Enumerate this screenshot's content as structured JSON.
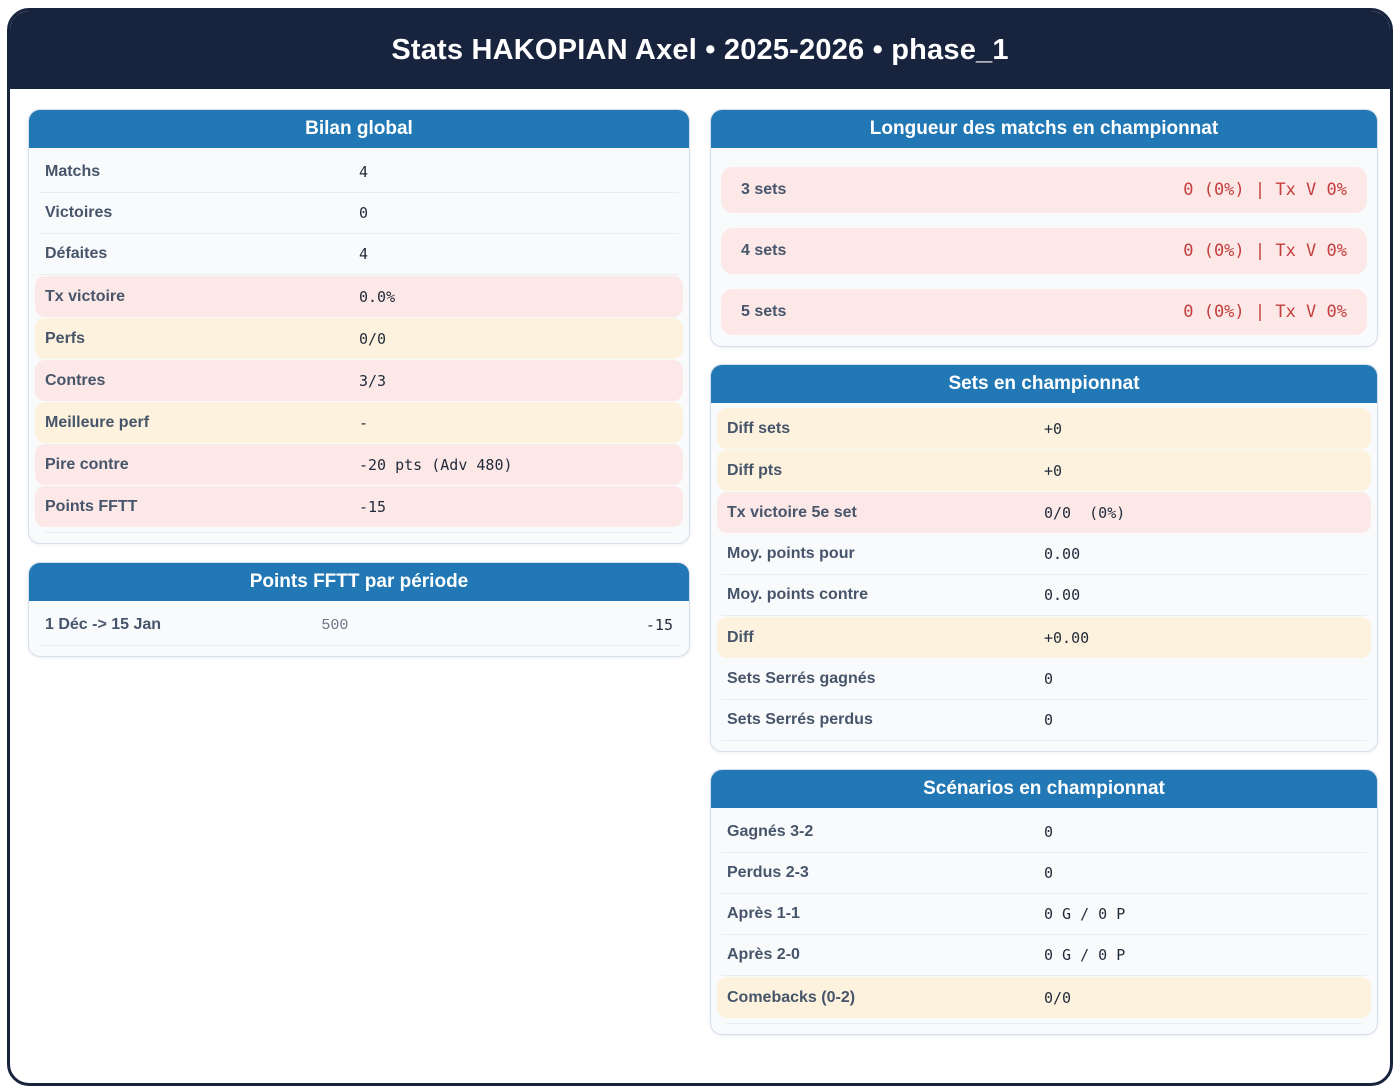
{
  "header": {
    "title": "Stats HAKOPIAN Axel • 2025-2026 • phase_1"
  },
  "colors": {
    "frame_navy": "#18233e",
    "card_header_blue": "#2278b5",
    "highlight_pink": "#fde8e8",
    "highlight_cream": "#fdf2dd",
    "value_red": "#c43e3e"
  },
  "cards": {
    "bilan_global": {
      "title": "Bilan global",
      "rows": [
        {
          "label": "Matchs",
          "value": "4",
          "highlight": "none"
        },
        {
          "label": "Victoires",
          "value": "0",
          "highlight": "none"
        },
        {
          "label": "Défaites",
          "value": "4",
          "highlight": "none"
        },
        {
          "label": "Tx victoire",
          "value": "0.0%",
          "highlight": "pink"
        },
        {
          "label": "Perfs",
          "value": "0/0",
          "highlight": "cream"
        },
        {
          "label": "Contres",
          "value": "3/3",
          "highlight": "pink"
        },
        {
          "label": "Meilleure perf",
          "value": "-",
          "highlight": "cream"
        },
        {
          "label": "Pire contre",
          "value": "-20 pts (Adv 480)",
          "highlight": "pink"
        },
        {
          "label": "Points FFTT",
          "value": "-15",
          "highlight": "pink"
        }
      ]
    },
    "points_periode": {
      "title": "Points FFTT par période",
      "rows": [
        {
          "label": "1 Déc -> 15 Jan",
          "mid_value": "500",
          "value": "-15",
          "highlight": "none"
        }
      ]
    },
    "longueur_matchs": {
      "title": "Longueur des matchs en championnat",
      "rows": [
        {
          "label": "3 sets",
          "value": "0 (0%) | Tx V 0%",
          "highlight": "pink"
        },
        {
          "label": "4 sets",
          "value": "0 (0%) | Tx V 0%",
          "highlight": "pink"
        },
        {
          "label": "5 sets",
          "value": "0 (0%) | Tx V 0%",
          "highlight": "pink"
        }
      ]
    },
    "sets_championnat": {
      "title": "Sets en championnat",
      "rows": [
        {
          "label": "Diff sets",
          "value": "+0",
          "highlight": "cream"
        },
        {
          "label": "Diff pts",
          "value": "+0",
          "highlight": "cream"
        },
        {
          "label": "Tx victoire 5e set",
          "value": "0/0  (0%)",
          "highlight": "pink"
        },
        {
          "label": "Moy. points pour",
          "value": "0.00",
          "highlight": "none"
        },
        {
          "label": "Moy. points contre",
          "value": "0.00",
          "highlight": "none"
        },
        {
          "label": "Diff",
          "value": "+0.00",
          "highlight": "cream"
        },
        {
          "label": "Sets Serrés gagnés",
          "value": "0",
          "highlight": "none"
        },
        {
          "label": "Sets Serrés perdus",
          "value": "0",
          "highlight": "none"
        }
      ]
    },
    "scenarios": {
      "title": "Scénarios en championnat",
      "rows": [
        {
          "label": "Gagnés 3-2",
          "value": "0",
          "highlight": "none"
        },
        {
          "label": "Perdus 2-3",
          "value": "0",
          "highlight": "none"
        },
        {
          "label": "Après 1-1",
          "value": "0 G / 0 P",
          "highlight": "none"
        },
        {
          "label": "Après 2-0",
          "value": "0 G / 0 P",
          "highlight": "none"
        },
        {
          "label": "Comebacks (0-2)",
          "value": "0/0",
          "highlight": "cream"
        }
      ]
    }
  }
}
